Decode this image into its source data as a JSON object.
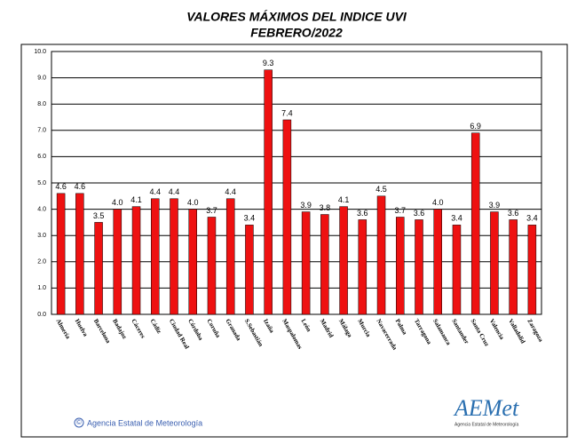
{
  "chart_data": {
    "type": "bar",
    "title": "VALORES MÁXIMOS DEL INDICE UVI",
    "subtitle": "FEBRERO/2022",
    "categories": [
      "Almería",
      "Huelva",
      "Barcelona",
      "Badajoz",
      "Cáceres",
      "Cádiz",
      "Ciudad Real",
      "Córdoba",
      "Coruña",
      "Granada",
      "S.Sebastián",
      "Izaña",
      "Maspalomas",
      "León",
      "Madrid",
      "Málaga",
      "Murcia",
      "Navacerrada",
      "Palma",
      "Tarragona",
      "Salamanca",
      "Santander",
      "Santa Cruz",
      "Valencia",
      "Valladolid",
      "Zaragoza"
    ],
    "values": [
      4.6,
      4.6,
      3.5,
      4.0,
      4.1,
      4.4,
      4.4,
      4.0,
      3.7,
      4.4,
      3.4,
      9.3,
      7.4,
      3.9,
      3.8,
      4.1,
      3.6,
      4.5,
      3.7,
      3.6,
      4.0,
      3.4,
      6.9,
      3.9,
      3.6,
      3.4
    ],
    "value_labels": [
      "4.6",
      "4.6",
      "3.5",
      "4.0",
      "4.1",
      "4.4",
      "4.4",
      "4.0",
      "3.7",
      "4.4",
      "3.4",
      "9.3",
      "7.4",
      "3.9",
      "3.8",
      "4.1",
      "3.6",
      "4.5",
      "3.7",
      "3.6",
      "4.0",
      "3.4",
      "6.9",
      "3.9",
      "3.6",
      "3.4"
    ],
    "color": "#ee1111",
    "ylim": [
      0,
      10
    ],
    "yticks": [
      {
        "value": 0,
        "label": "0.0"
      },
      {
        "value": 1,
        "label": "1.0"
      },
      {
        "value": 2,
        "label": "2.0"
      },
      {
        "value": 3,
        "label": "3.0"
      },
      {
        "value": 4,
        "label": "4.0"
      },
      {
        "value": 5,
        "label": "5.0"
      },
      {
        "value": 6,
        "label": "6.0"
      },
      {
        "value": 7,
        "label": "7.0"
      },
      {
        "value": 8,
        "label": "8.0"
      },
      {
        "value": 9,
        "label": "9.0"
      },
      {
        "value": 10,
        "label": "10.0"
      }
    ],
    "grid": true
  },
  "footer": {
    "copyright": "©",
    "text": "Agencia Estatal de Meteorología"
  },
  "logo": {
    "text": "AEMet",
    "caption": "Agencia Estatal de Meteorología"
  }
}
